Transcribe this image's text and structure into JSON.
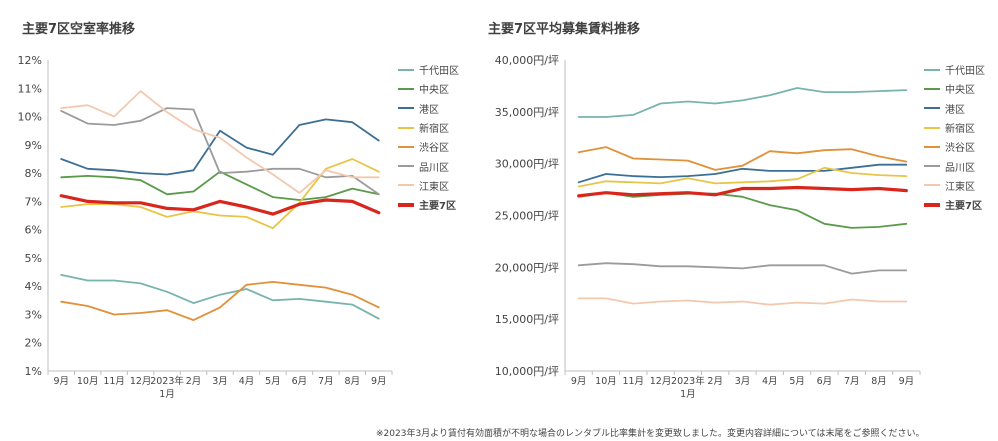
{
  "note": "※2023年3月より賃付有効面積が不明な場合のレンタブル比率集計を変更致しました。変更内容詳細については末尾をご参照ください。",
  "chart_data": [
    {
      "type": "line",
      "title": "主要7区空室率推移",
      "categories": [
        "9月",
        "10月",
        "11月",
        "12月",
        "2023年1月",
        "2月",
        "3月",
        "4月",
        "5月",
        "6月",
        "7月",
        "8月",
        "9月"
      ],
      "y_ticks": [
        "1%",
        "2%",
        "3%",
        "4%",
        "5%",
        "6%",
        "7%",
        "8%",
        "9%",
        "10%",
        "11%",
        "12%"
      ],
      "ylim": [
        1,
        12
      ],
      "grid": false,
      "legend_position": "right",
      "series": [
        {
          "name": "千代田区",
          "color": "#78b4ad",
          "values": [
            4.4,
            4.2,
            4.2,
            4.1,
            3.8,
            3.4,
            3.7,
            3.9,
            3.5,
            3.55,
            3.45,
            3.35,
            2.85
          ]
        },
        {
          "name": "中央区",
          "color": "#5a9a4a",
          "values": [
            7.85,
            7.9,
            7.85,
            7.75,
            7.25,
            7.35,
            8.05,
            7.6,
            7.15,
            7.05,
            7.15,
            7.45,
            7.25
          ]
        },
        {
          "name": "港区",
          "color": "#3c6f94",
          "values": [
            8.5,
            8.15,
            8.1,
            8.0,
            7.95,
            8.1,
            9.5,
            8.9,
            8.65,
            9.7,
            9.9,
            9.8,
            9.15
          ]
        },
        {
          "name": "新宿区",
          "color": "#e8c547",
          "values": [
            6.8,
            6.9,
            6.9,
            6.8,
            6.45,
            6.65,
            6.5,
            6.45,
            6.05,
            6.95,
            8.15,
            8.5,
            8.05
          ]
        },
        {
          "name": "渋谷区",
          "color": "#e0913a",
          "values": [
            3.45,
            3.3,
            3.0,
            3.05,
            3.15,
            2.8,
            3.25,
            4.05,
            4.15,
            4.05,
            3.95,
            3.7,
            3.25
          ]
        },
        {
          "name": "品川区",
          "color": "#9b9b9b",
          "values": [
            10.2,
            9.75,
            9.7,
            9.85,
            10.3,
            10.25,
            8.0,
            8.05,
            8.15,
            8.15,
            7.85,
            7.9,
            7.25
          ]
        },
        {
          "name": "江東区",
          "color": "#f2c9ae",
          "values": [
            10.3,
            10.4,
            10.0,
            10.9,
            10.15,
            9.55,
            9.25,
            8.55,
            7.95,
            7.3,
            8.1,
            7.85,
            7.85
          ]
        },
        {
          "name": "主要7区",
          "color": "#d9261c",
          "bold": true,
          "values": [
            7.2,
            7.0,
            6.95,
            6.95,
            6.75,
            6.7,
            7.0,
            6.8,
            6.55,
            6.9,
            7.05,
            7.0,
            6.6
          ]
        }
      ]
    },
    {
      "type": "line",
      "title": "主要7区平均募集賃料推移",
      "categories": [
        "9月",
        "10月",
        "11月",
        "12月",
        "2023年1月",
        "2月",
        "3月",
        "4月",
        "5月",
        "6月",
        "7月",
        "8月",
        "9月"
      ],
      "y_ticks": [
        "10,000円/坪",
        "15,000円/坪",
        "20,000円/坪",
        "25,000円/坪",
        "30,000円/坪",
        "35,000円/坪",
        "40,000円/坪"
      ],
      "ylim": [
        10000,
        40000
      ],
      "grid": false,
      "legend_position": "right",
      "series": [
        {
          "name": "千代田区",
          "color": "#78b4ad",
          "values": [
            34500,
            34500,
            34700,
            35800,
            36000,
            35800,
            36100,
            36600,
            37300,
            36900,
            36900,
            37000,
            37100
          ]
        },
        {
          "name": "中央区",
          "color": "#5a9a4a",
          "values": [
            26800,
            27200,
            26800,
            27000,
            27100,
            27100,
            26800,
            26000,
            25500,
            24200,
            23800,
            23900,
            24200
          ]
        },
        {
          "name": "港区",
          "color": "#3c6f94",
          "values": [
            28200,
            29000,
            28800,
            28700,
            28800,
            29000,
            29500,
            29300,
            29300,
            29300,
            29600,
            29900,
            29900
          ]
        },
        {
          "name": "新宿区",
          "color": "#e8c547",
          "values": [
            27800,
            28300,
            28200,
            28100,
            28600,
            28100,
            28200,
            28300,
            28500,
            29600,
            29100,
            28900,
            28800
          ]
        },
        {
          "name": "渋谷区",
          "color": "#e0913a",
          "values": [
            31100,
            31600,
            30500,
            30400,
            30300,
            29400,
            29800,
            31200,
            31000,
            31300,
            31400,
            30700,
            30200
          ]
        },
        {
          "name": "品川区",
          "color": "#9b9b9b",
          "values": [
            20200,
            20400,
            20300,
            20100,
            20100,
            20000,
            19900,
            20200,
            20200,
            20200,
            19400,
            19700,
            19700
          ]
        },
        {
          "name": "江東区",
          "color": "#f2c9ae",
          "values": [
            17000,
            17000,
            16500,
            16700,
            16800,
            16600,
            16700,
            16400,
            16600,
            16500,
            16900,
            16700,
            16700
          ]
        },
        {
          "name": "主要7区",
          "color": "#d9261c",
          "bold": true,
          "values": [
            26900,
            27200,
            27000,
            27100,
            27200,
            27000,
            27600,
            27600,
            27700,
            27600,
            27500,
            27600,
            27400
          ]
        }
      ]
    }
  ]
}
